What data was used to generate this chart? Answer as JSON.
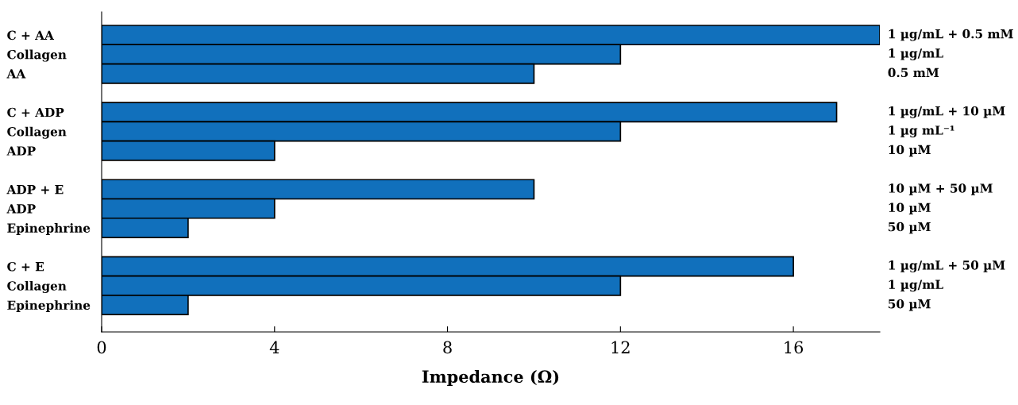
{
  "chart_data": {
    "type": "bar",
    "orientation": "horizontal",
    "xlabel": "Impedance (Ω)",
    "categories": [
      "C + AA",
      "Collagen",
      "AA",
      null,
      "C + ADP",
      "Collagen",
      "ADP",
      null,
      "ADP + E",
      "ADP",
      "Epinephrine",
      null,
      "C + E",
      "Collagen",
      "Epinephrine"
    ],
    "values": [
      18,
      12,
      10,
      null,
      17,
      12,
      4,
      null,
      10,
      4,
      2,
      null,
      16,
      12,
      2
    ],
    "annotations": [
      "1 µg/mL + 0.5 mM",
      "1 µg/mL",
      "0.5 mM",
      "1 µg/mL + 10 µM",
      "1 µg mL⁻¹",
      "10 µM",
      "10 µM + 50 µM",
      "10 µM",
      "50 µM",
      "1 µg/mL + 50 µM",
      "1 µg/mL",
      "50 µM"
    ],
    "color": "#1170bc",
    "xlim": [
      0,
      18
    ],
    "xticks": [
      0,
      4,
      8,
      12,
      16
    ],
    "grid": false,
    "legend": false
  }
}
